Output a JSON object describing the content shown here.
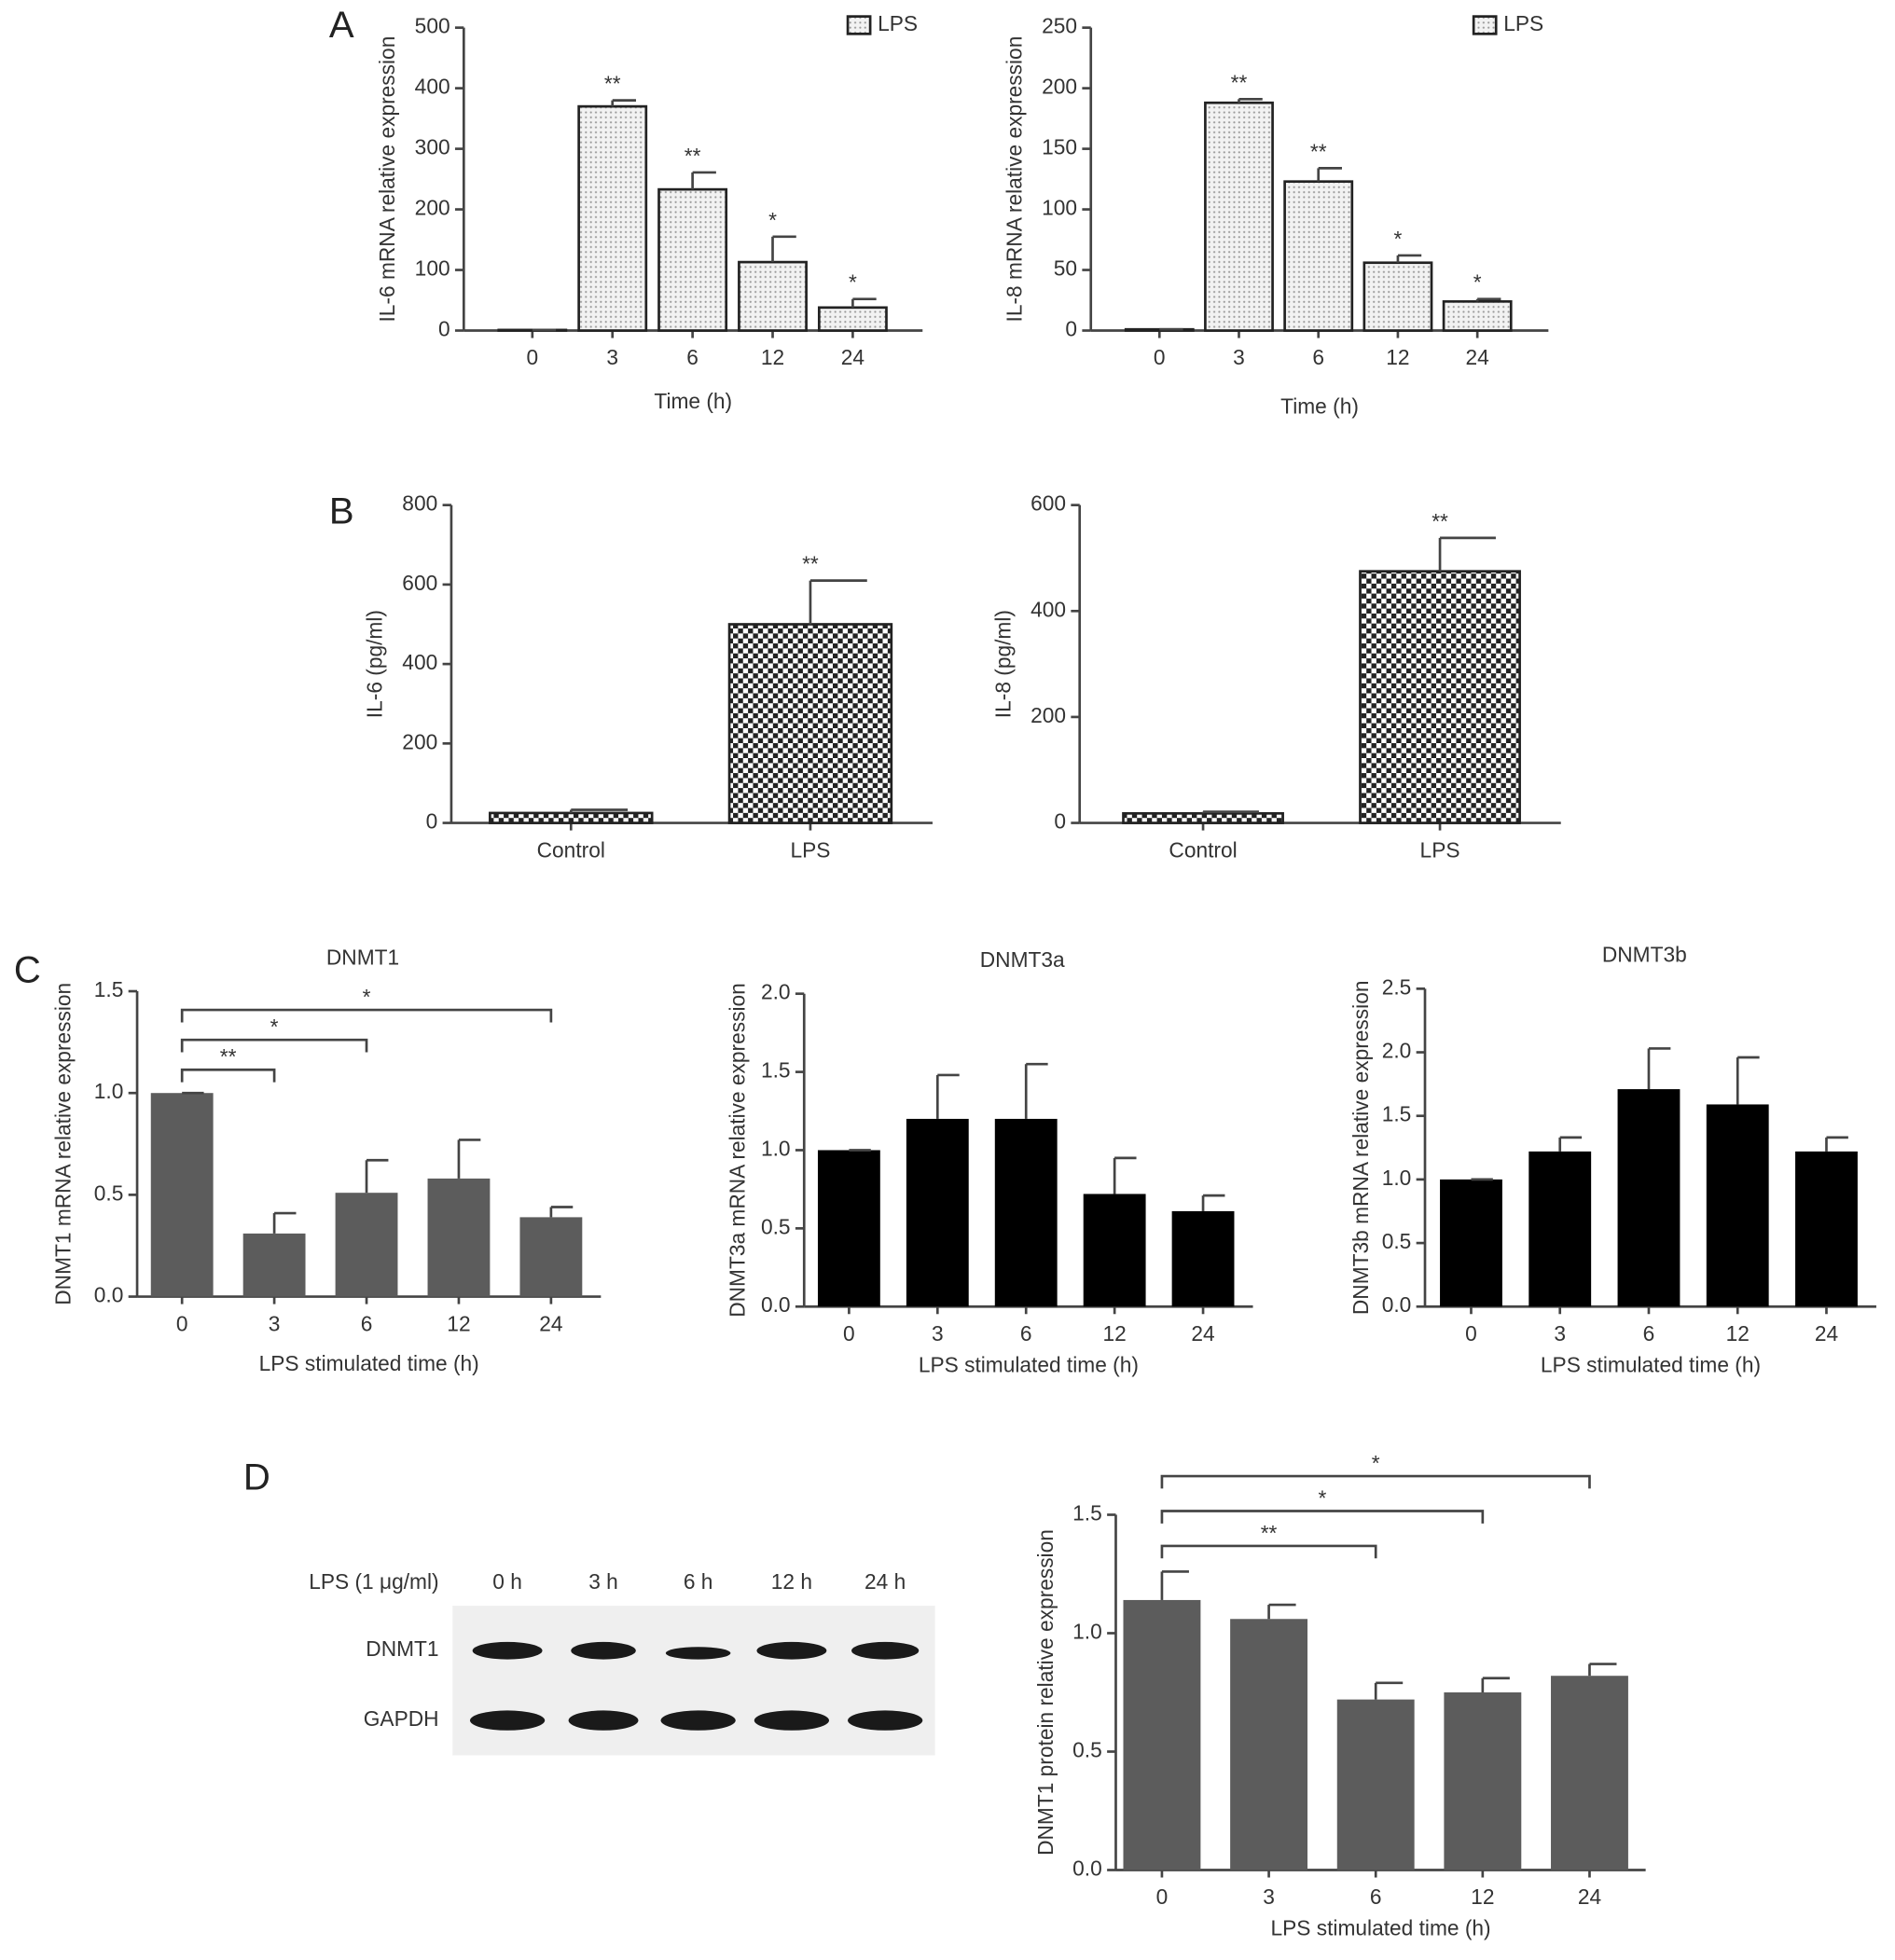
{
  "panels": [
    "A",
    "B",
    "C",
    "D"
  ],
  "blot": {
    "treatment": "LPS (1 μg/ml)",
    "lanes": [
      "0 h",
      "3 h",
      "6 h",
      "12 h",
      "24 h"
    ],
    "rows": [
      "DNMT1",
      "GAPDH"
    ]
  },
  "chart_data": [
    {
      "type": "bar",
      "ylabel": "IL-6 mRNA relative expression",
      "xlabel": "Time (h)",
      "categories": [
        "0",
        "3",
        "6",
        "12",
        "24"
      ],
      "series": [
        {
          "name": "LPS",
          "color": "#e4e4e4",
          "pattern": "dots",
          "values": [
            1,
            370,
            233,
            113,
            38
          ],
          "error": [
            0,
            10,
            28,
            42,
            14
          ]
        }
      ],
      "annotations": [
        null,
        "**",
        "**",
        "*",
        "*"
      ],
      "legend": "top-right",
      "ylim": [
        0,
        500
      ],
      "yticks": [
        0,
        100,
        200,
        300,
        400,
        500
      ]
    },
    {
      "type": "bar",
      "ylabel": "IL-8 mRNA relative expression",
      "xlabel": "Time (h)",
      "categories": [
        "0",
        "3",
        "6",
        "12",
        "24"
      ],
      "series": [
        {
          "name": "LPS",
          "color": "#e4e4e4",
          "pattern": "dots",
          "values": [
            1,
            188,
            123,
            56,
            24
          ],
          "error": [
            0,
            3,
            11,
            6,
            2
          ]
        }
      ],
      "annotations": [
        null,
        "**",
        "**",
        "*",
        "*"
      ],
      "legend": "top-right",
      "ylim": [
        0,
        250
      ],
      "yticks": [
        0,
        50,
        100,
        150,
        200,
        250
      ]
    },
    {
      "type": "bar",
      "ylabel": "IL-6 (pg/ml)",
      "categories": [
        "Control",
        "LPS"
      ],
      "series": [
        {
          "color": "#222222",
          "pattern": "checker",
          "values": [
            25,
            500
          ],
          "error": [
            8,
            110
          ]
        }
      ],
      "annotations": [
        null,
        "**"
      ],
      "ylim": [
        0,
        800
      ],
      "yticks": [
        0,
        200,
        400,
        600,
        800
      ]
    },
    {
      "type": "bar",
      "ylabel": "IL-8 (pg/ml)",
      "categories": [
        "Control",
        "LPS"
      ],
      "series": [
        {
          "color": "#222222",
          "pattern": "checker",
          "values": [
            18,
            475
          ],
          "error": [
            3,
            63
          ]
        }
      ],
      "annotations": [
        null,
        "**"
      ],
      "ylim": [
        0,
        600
      ],
      "yticks": [
        0,
        200,
        400,
        600
      ]
    },
    {
      "type": "bar",
      "title": "DNMT1",
      "ylabel": "DNMT1 mRNA relative expression",
      "xlabel": "LPS stimulated time (h)",
      "categories": [
        "0",
        "3",
        "6",
        "12",
        "24"
      ],
      "series": [
        {
          "color": "#5c5c5c",
          "values": [
            1.0,
            0.31,
            0.51,
            0.58,
            0.39
          ],
          "error": [
            0,
            0.1,
            0.16,
            0.19,
            0.05
          ]
        }
      ],
      "comparisons": [
        {
          "between": [
            "0",
            "3"
          ],
          "label": "**"
        },
        {
          "between": [
            "0",
            "6"
          ],
          "label": "*"
        },
        {
          "between": [
            "0",
            "24"
          ],
          "label": "*"
        }
      ],
      "ylim": [
        0,
        1.5
      ],
      "yticks": [
        {
          "value": 0,
          "label": "0.0"
        },
        {
          "value": 0.5,
          "label": "0.5"
        },
        {
          "value": 1,
          "label": "1.0"
        },
        {
          "value": 1.5,
          "label": "1.5"
        }
      ]
    },
    {
      "type": "bar",
      "title": "DNMT3a",
      "ylabel": "DNMT3a mRNA relative expression",
      "xlabel": "LPS stimulated time (h)",
      "categories": [
        "0",
        "3",
        "6",
        "12",
        "24"
      ],
      "series": [
        {
          "color": "#000000",
          "values": [
            1.0,
            1.2,
            1.2,
            0.72,
            0.61
          ],
          "error": [
            0,
            0.28,
            0.35,
            0.23,
            0.1
          ]
        }
      ],
      "ylim": [
        0,
        2
      ],
      "yticks": [
        {
          "value": 0,
          "label": "0.0"
        },
        {
          "value": 0.5,
          "label": "0.5"
        },
        {
          "value": 1,
          "label": "1.0"
        },
        {
          "value": 1.5,
          "label": "1.5"
        },
        {
          "value": 2,
          "label": "2.0"
        }
      ]
    },
    {
      "type": "bar",
      "title": "DNMT3b",
      "ylabel": "DNMT3b mRNA relative expression",
      "xlabel": "LPS stimulated time (h)",
      "categories": [
        "0",
        "3",
        "6",
        "12",
        "24"
      ],
      "series": [
        {
          "color": "#000000",
          "values": [
            1.0,
            1.22,
            1.71,
            1.59,
            1.22
          ],
          "error": [
            0,
            0.11,
            0.32,
            0.37,
            0.11
          ]
        }
      ],
      "ylim": [
        0,
        2.5
      ],
      "yticks": [
        {
          "value": 0,
          "label": "0.0"
        },
        {
          "value": 0.5,
          "label": "0.5"
        },
        {
          "value": 1,
          "label": "1.0"
        },
        {
          "value": 1.5,
          "label": "1.5"
        },
        {
          "value": 2,
          "label": "2.0"
        },
        {
          "value": 2.5,
          "label": "2.5"
        }
      ]
    },
    {
      "type": "bar",
      "ylabel": "DNMT1 protein relative expression",
      "xlabel": "LPS stimulated time (h)",
      "categories": [
        "0",
        "3",
        "6",
        "12",
        "24"
      ],
      "series": [
        {
          "color": "#5c5c5c",
          "values": [
            1.14,
            1.06,
            0.72,
            0.75,
            0.82
          ],
          "error": [
            0.12,
            0.06,
            0.07,
            0.06,
            0.05
          ]
        }
      ],
      "comparisons": [
        {
          "between": [
            "0",
            "6"
          ],
          "label": "**"
        },
        {
          "between": [
            "0",
            "12"
          ],
          "label": "*"
        },
        {
          "between": [
            "0",
            "24"
          ],
          "label": "*"
        }
      ],
      "ylim": [
        0,
        1.5
      ],
      "yticks": [
        {
          "value": 0,
          "label": "0.0"
        },
        {
          "value": 0.5,
          "label": "0.5"
        },
        {
          "value": 1,
          "label": "1.0"
        },
        {
          "value": 1.5,
          "label": "1.5"
        }
      ]
    }
  ]
}
